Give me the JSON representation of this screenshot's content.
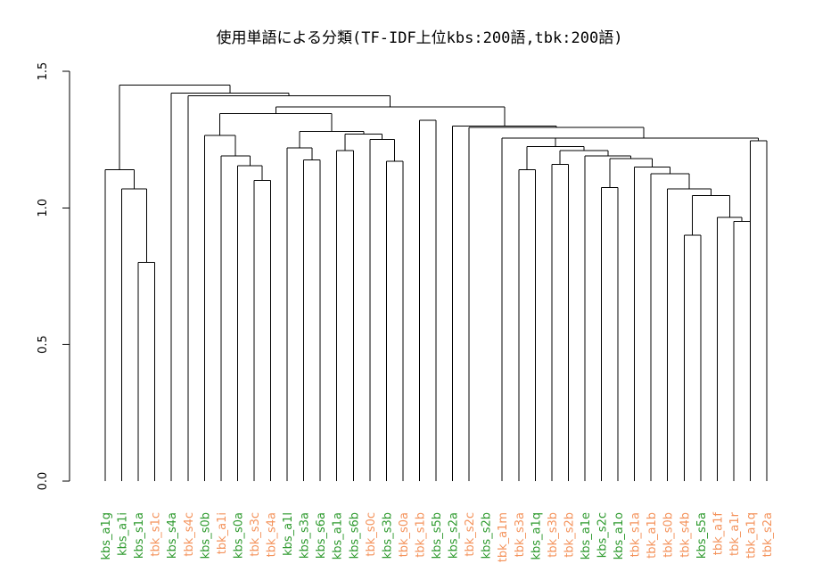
{
  "chart_data": {
    "type": "dendrogram",
    "title": "使用単語による分類(TF-IDF上位kbs:200語,tbk:200語)",
    "xlabel": "",
    "ylabel": "",
    "ylim": [
      0,
      1.5
    ],
    "yticks": [
      "0.0",
      "0.5",
      "1.0",
      "1.5"
    ],
    "yticks_values": [
      0,
      0.5,
      1.0,
      1.5
    ],
    "grid": false,
    "colors": {
      "kbs": "#2e9a2e",
      "tbk": "#f4935c",
      "line": "#000000"
    },
    "leaves": [
      {
        "label": "kbs_a1g",
        "group": "kbs"
      },
      {
        "label": "kbs_a1i",
        "group": "kbs"
      },
      {
        "label": "kbs_s1a",
        "group": "kbs"
      },
      {
        "label": "tbk_s1c",
        "group": "tbk"
      },
      {
        "label": "kbs_s4a",
        "group": "kbs"
      },
      {
        "label": "tbk_s4c",
        "group": "tbk"
      },
      {
        "label": "kbs_s0b",
        "group": "kbs"
      },
      {
        "label": "tbk_a1i",
        "group": "tbk"
      },
      {
        "label": "kbs_s0a",
        "group": "kbs"
      },
      {
        "label": "tbk_s3c",
        "group": "tbk"
      },
      {
        "label": "tbk_s4a",
        "group": "tbk"
      },
      {
        "label": "kbs_a1l",
        "group": "kbs"
      },
      {
        "label": "kbs_s3a",
        "group": "kbs"
      },
      {
        "label": "kbs_s6a",
        "group": "kbs"
      },
      {
        "label": "kbs_a1a",
        "group": "kbs"
      },
      {
        "label": "kbs_s6b",
        "group": "kbs"
      },
      {
        "label": "tbk_s0c",
        "group": "tbk"
      },
      {
        "label": "kbs_s3b",
        "group": "kbs"
      },
      {
        "label": "tbk_s0a",
        "group": "tbk"
      },
      {
        "label": "tbk_s1b",
        "group": "tbk"
      },
      {
        "label": "kbs_s5b",
        "group": "kbs"
      },
      {
        "label": "kbs_s2a",
        "group": "kbs"
      },
      {
        "label": "tbk_s2c",
        "group": "tbk"
      },
      {
        "label": "kbs_s2b",
        "group": "kbs"
      },
      {
        "label": "tbk_a1m",
        "group": "tbk"
      },
      {
        "label": "tbk_s3a",
        "group": "tbk"
      },
      {
        "label": "kbs_a1q",
        "group": "kbs"
      },
      {
        "label": "tbk_s3b",
        "group": "tbk"
      },
      {
        "label": "tbk_s2b",
        "group": "tbk"
      },
      {
        "label": "kbs_a1e",
        "group": "kbs"
      },
      {
        "label": "kbs_s2c",
        "group": "kbs"
      },
      {
        "label": "kbs_a1o",
        "group": "kbs"
      },
      {
        "label": "tbk_s1a",
        "group": "tbk"
      },
      {
        "label": "tbk_a1b",
        "group": "tbk"
      },
      {
        "label": "tbk_s0b",
        "group": "tbk"
      },
      {
        "label": "tbk_s4b",
        "group": "tbk"
      },
      {
        "label": "kbs_s5a",
        "group": "kbs"
      },
      {
        "label": "tbk_a1f",
        "group": "tbk"
      },
      {
        "label": "tbk_a1r",
        "group": "tbk"
      },
      {
        "label": "tbk_a1q",
        "group": "tbk"
      },
      {
        "label": "tbk_s2a",
        "group": "tbk"
      }
    ],
    "merges": [
      {
        "a": "L2",
        "b": "L3",
        "height": 0.8
      },
      {
        "a": "L1",
        "b": "M0",
        "height": 1.07
      },
      {
        "a": "L0",
        "b": "M1",
        "height": 1.14
      },
      {
        "a": "L9",
        "b": "L10",
        "height": 1.1
      },
      {
        "a": "L8",
        "b": "M3",
        "height": 1.155
      },
      {
        "a": "L7",
        "b": "M4",
        "height": 1.19
      },
      {
        "a": "L6",
        "b": "M5",
        "height": 1.265
      },
      {
        "a": "L12",
        "b": "L13",
        "height": 1.175
      },
      {
        "a": "L11",
        "b": "M7",
        "height": 1.22
      },
      {
        "a": "L17",
        "b": "L18",
        "height": 1.17
      },
      {
        "a": "L16",
        "b": "M9",
        "height": 1.25
      },
      {
        "a": "L15",
        "b": "M10",
        "height": 1.27
      },
      {
        "a": "L14",
        "b": "L15",
        "height": 1.21
      },
      {
        "a": "M12",
        "b": "L16",
        "height": 1.26
      },
      {
        "a": "L14",
        "b": "L16",
        "height": 1.255
      },
      {
        "a": "L35",
        "b": "L36",
        "height": 0.9
      },
      {
        "a": "L38",
        "b": "L39",
        "height": 0.95
      },
      {
        "a": "L37",
        "b": "M16",
        "height": 0.965
      },
      {
        "a": "M15",
        "b": "M17",
        "height": 1.045
      },
      {
        "a": "L34",
        "b": "M18",
        "height": 1.07
      },
      {
        "a": "L33",
        "b": "M19",
        "height": 1.125
      },
      {
        "a": "L32",
        "b": "M20",
        "height": 1.15
      },
      {
        "a": "L31",
        "b": "M21",
        "height": 1.18
      },
      {
        "a": "L30",
        "b": "M22",
        "height": 1.19
      },
      {
        "a": "L29",
        "b": "M23",
        "height": 1.21
      },
      {
        "a": "L27",
        "b": "L28",
        "height": 1.16
      },
      {
        "a": "M25",
        "b": "M24",
        "height": 1.21
      },
      {
        "a": "L25",
        "b": "L26",
        "height": 1.14
      },
      {
        "a": "M27",
        "b": "M26",
        "height": 1.225
      },
      {
        "a": "L24",
        "b": "M28",
        "height": 1.26
      },
      {
        "a": "L40",
        "b": "L41",
        "height": 1.245
      },
      {
        "a": "M29",
        "b": "M30",
        "height": 1.255
      }
    ]
  }
}
